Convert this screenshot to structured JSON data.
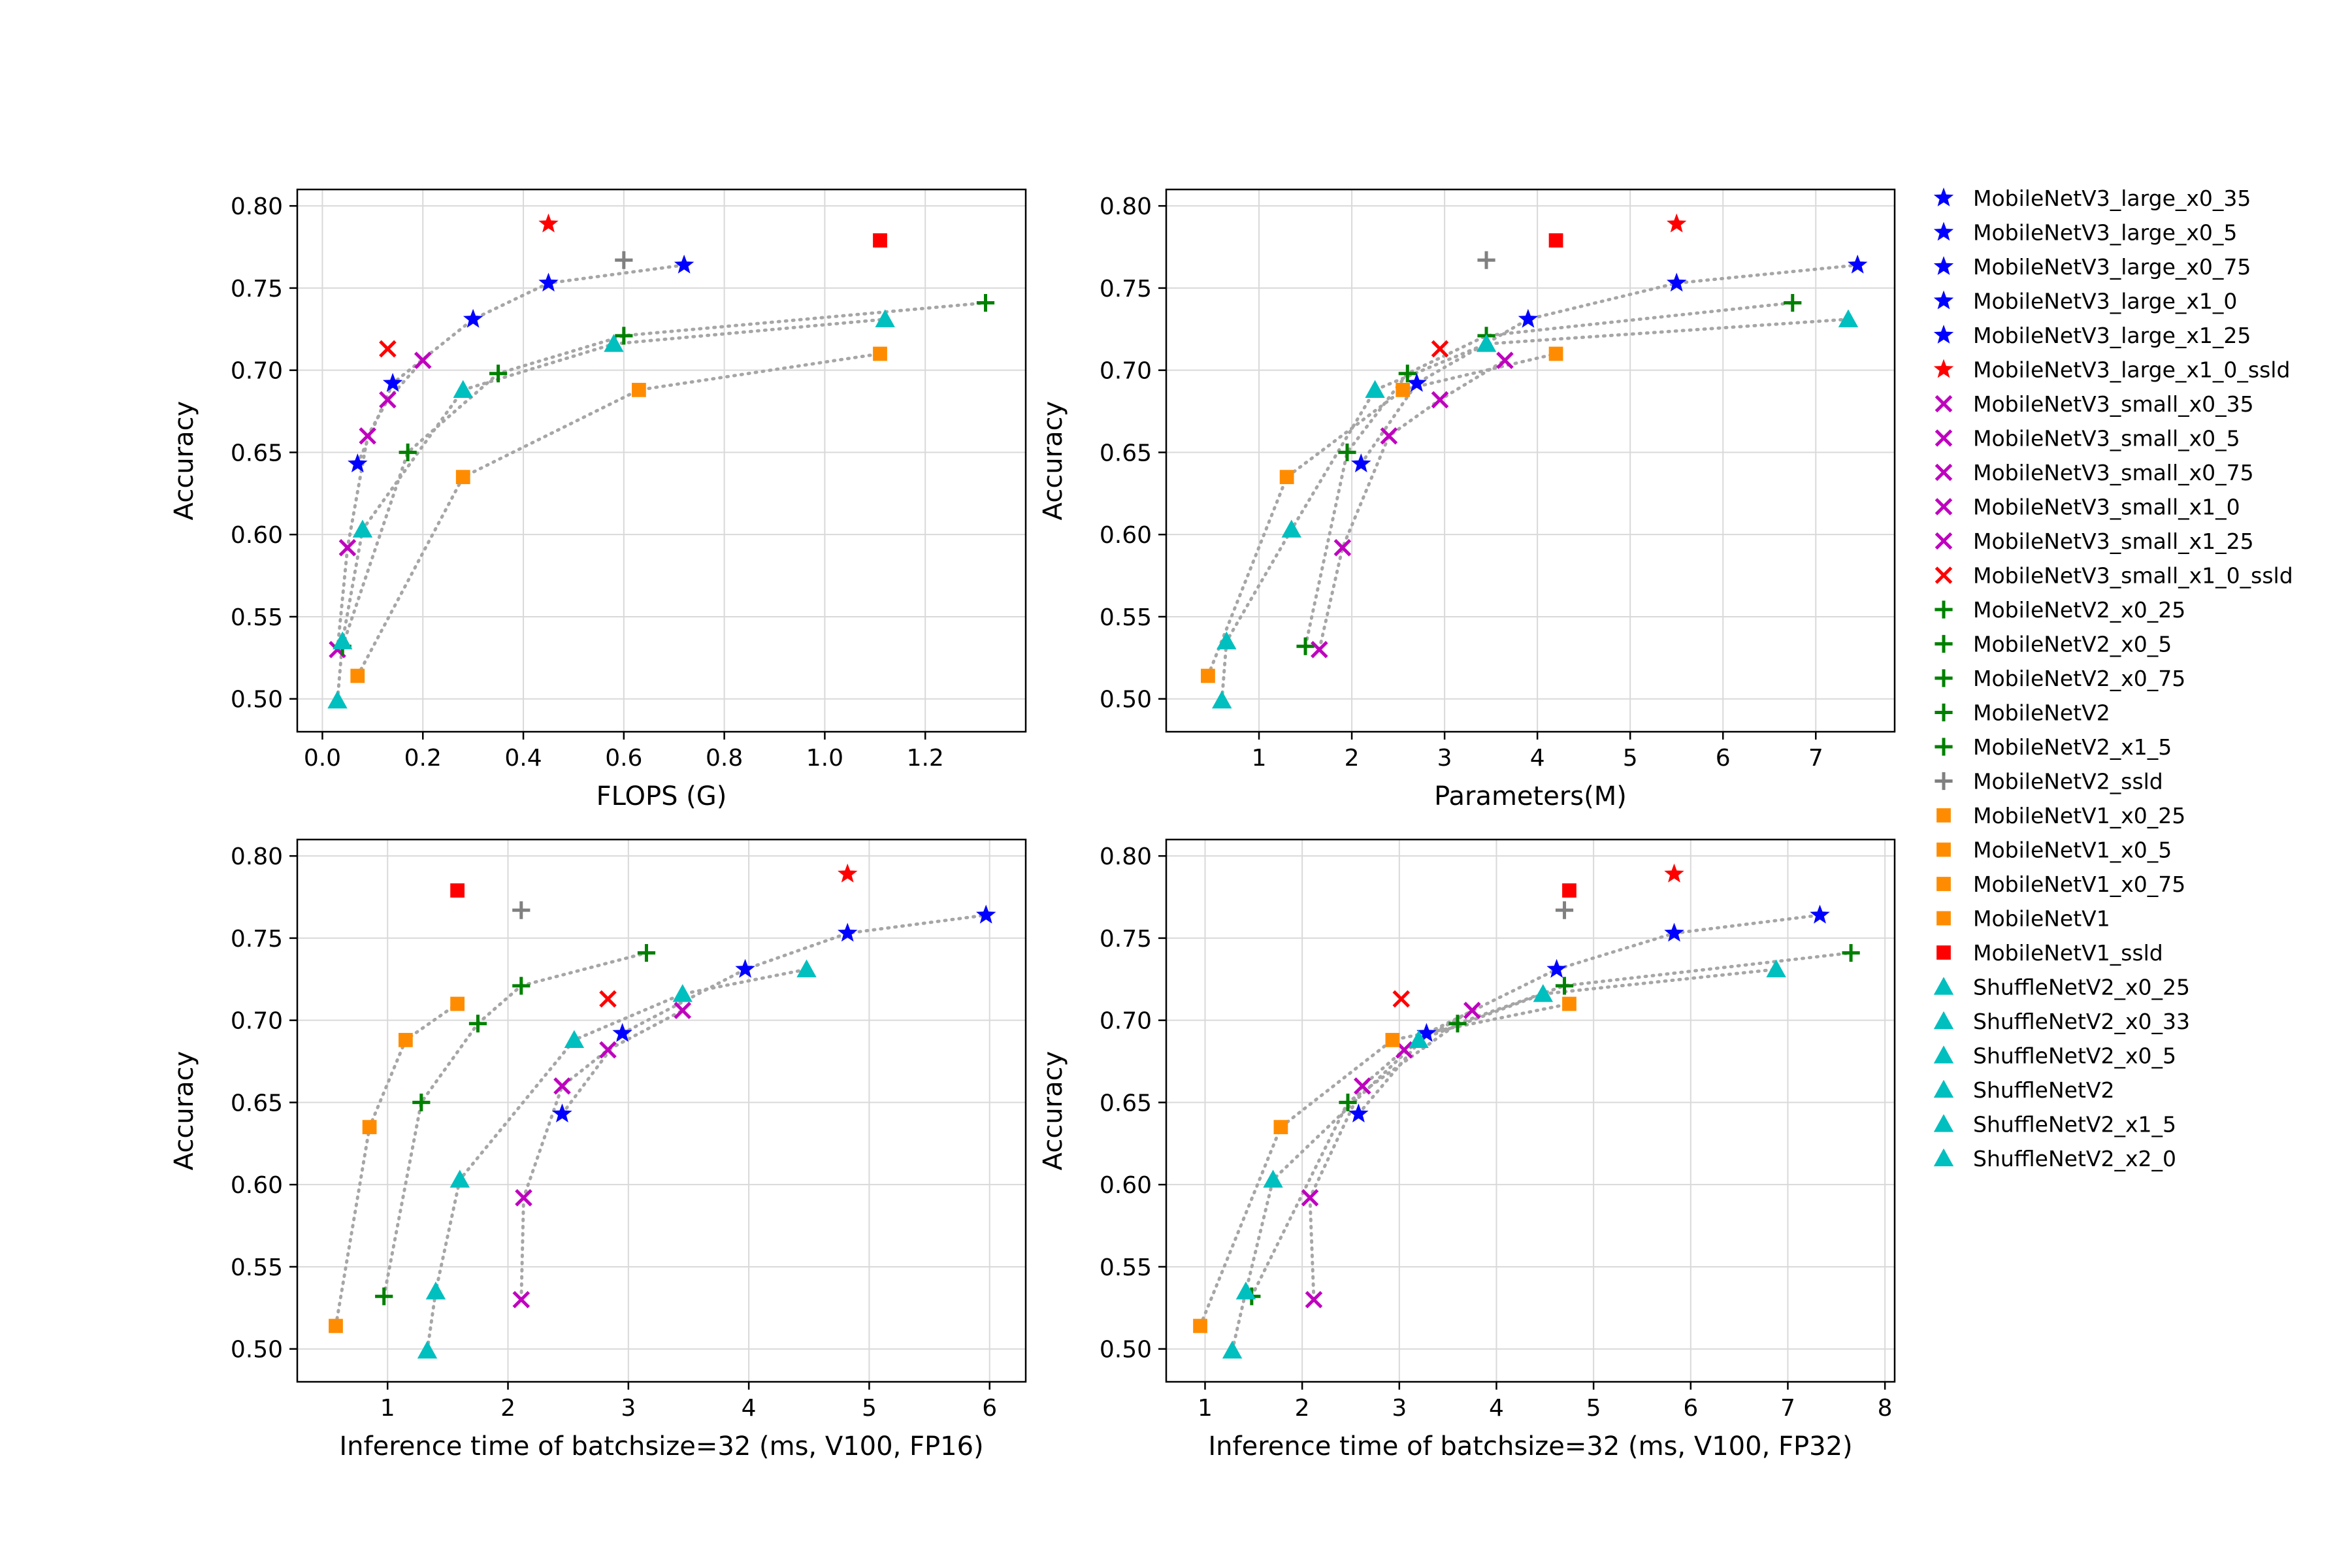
{
  "chart_data": [
    {
      "type": "scatter",
      "xlabel": "FLOPS (G)",
      "ylabel": "Accuracy",
      "xlim": [
        -0.05,
        1.4
      ],
      "ylim": [
        0.48,
        0.81
      ],
      "xticks": [
        0.0,
        0.2,
        0.4,
        0.6,
        0.8,
        1.0,
        1.2
      ],
      "xtick_labels": [
        "0.0",
        "0.2",
        "0.4",
        "0.6",
        "0.8",
        "1.0",
        "1.2"
      ],
      "yticks": [
        0.5,
        0.55,
        0.6,
        0.65,
        0.7,
        0.75,
        0.8
      ],
      "ytick_labels": [
        "0.50",
        "0.55",
        "0.60",
        "0.65",
        "0.70",
        "0.75",
        "0.80"
      ],
      "grid": true,
      "series": [
        {
          "family": "MobileNetV3_large",
          "x": [
            0.07,
            0.14,
            0.3,
            0.45,
            0.72
          ],
          "y": [
            0.643,
            0.692,
            0.731,
            0.753,
            0.764
          ]
        },
        {
          "family": "MobileNetV3_small",
          "x": [
            0.03,
            0.05,
            0.09,
            0.13,
            0.2
          ],
          "y": [
            0.53,
            0.592,
            0.66,
            0.682,
            0.706
          ]
        },
        {
          "family": "MobileNetV2",
          "x": [
            0.04,
            0.17,
            0.35,
            0.6,
            1.32
          ],
          "y": [
            0.532,
            0.65,
            0.698,
            0.721,
            0.741
          ]
        },
        {
          "family": "MobileNetV1",
          "x": [
            0.07,
            0.28,
            0.63,
            1.11
          ],
          "y": [
            0.514,
            0.635,
            0.688,
            0.71
          ]
        },
        {
          "family": "ShuffleNetV2",
          "x": [
            0.03,
            0.04,
            0.08,
            0.28,
            0.58,
            1.12
          ],
          "y": [
            0.499,
            0.535,
            0.603,
            0.688,
            0.716,
            0.731
          ]
        },
        {
          "family": "MobileNetV3_large_x1_0_ssld",
          "x": [
            0.45
          ],
          "y": [
            0.789
          ]
        },
        {
          "family": "MobileNetV3_small_x1_0_ssld",
          "x": [
            0.13
          ],
          "y": [
            0.713
          ]
        },
        {
          "family": "MobileNetV2_ssld",
          "x": [
            0.6
          ],
          "y": [
            0.767
          ]
        },
        {
          "family": "MobileNetV1_ssld",
          "x": [
            1.11
          ],
          "y": [
            0.779
          ]
        }
      ]
    },
    {
      "type": "scatter",
      "xlabel": "Parameters(M)",
      "ylabel": "Accuracy",
      "xlim": [
        0.0,
        7.85
      ],
      "ylim": [
        0.48,
        0.81
      ],
      "xticks": [
        1,
        2,
        3,
        4,
        5,
        6,
        7
      ],
      "xtick_labels": [
        "1",
        "2",
        "3",
        "4",
        "5",
        "6",
        "7"
      ],
      "yticks": [
        0.5,
        0.55,
        0.6,
        0.65,
        0.7,
        0.75,
        0.8
      ],
      "ytick_labels": [
        "0.50",
        "0.55",
        "0.60",
        "0.65",
        "0.70",
        "0.75",
        "0.80"
      ],
      "grid": true,
      "series": [
        {
          "family": "MobileNetV3_large",
          "x": [
            2.1,
            2.7,
            3.9,
            5.5,
            7.45
          ],
          "y": [
            0.643,
            0.692,
            0.731,
            0.753,
            0.764
          ]
        },
        {
          "family": "MobileNetV3_small",
          "x": [
            1.65,
            1.9,
            2.4,
            2.95,
            3.65
          ],
          "y": [
            0.53,
            0.592,
            0.66,
            0.682,
            0.706
          ]
        },
        {
          "family": "MobileNetV2",
          "x": [
            1.5,
            1.95,
            2.6,
            3.45,
            6.75
          ],
          "y": [
            0.532,
            0.65,
            0.698,
            0.721,
            0.741
          ]
        },
        {
          "family": "MobileNetV1",
          "x": [
            0.45,
            1.3,
            2.55,
            4.2
          ],
          "y": [
            0.514,
            0.635,
            0.688,
            0.71
          ]
        },
        {
          "family": "ShuffleNetV2",
          "x": [
            0.6,
            0.65,
            1.35,
            2.25,
            3.45,
            7.35
          ],
          "y": [
            0.499,
            0.535,
            0.603,
            0.688,
            0.716,
            0.731
          ]
        },
        {
          "family": "MobileNetV3_large_x1_0_ssld",
          "x": [
            5.5
          ],
          "y": [
            0.789
          ]
        },
        {
          "family": "MobileNetV3_small_x1_0_ssld",
          "x": [
            2.95
          ],
          "y": [
            0.713
          ]
        },
        {
          "family": "MobileNetV2_ssld",
          "x": [
            3.45
          ],
          "y": [
            0.767
          ]
        },
        {
          "family": "MobileNetV1_ssld",
          "x": [
            4.2
          ],
          "y": [
            0.779
          ]
        }
      ]
    },
    {
      "type": "scatter",
      "xlabel": "Inference time of batchsize=32 (ms, V100, FP16)",
      "ylabel": "Accuracy",
      "xlim": [
        0.25,
        6.3
      ],
      "ylim": [
        0.48,
        0.81
      ],
      "xticks": [
        1,
        2,
        3,
        4,
        5,
        6
      ],
      "xtick_labels": [
        "1",
        "2",
        "3",
        "4",
        "5",
        "6"
      ],
      "yticks": [
        0.5,
        0.55,
        0.6,
        0.65,
        0.7,
        0.75,
        0.8
      ],
      "ytick_labels": [
        "0.50",
        "0.55",
        "0.60",
        "0.65",
        "0.70",
        "0.75",
        "0.80"
      ],
      "grid": true,
      "series": [
        {
          "family": "MobileNetV3_large",
          "x": [
            2.45,
            2.95,
            3.97,
            4.82,
            5.97
          ],
          "y": [
            0.643,
            0.692,
            0.731,
            0.753,
            0.764
          ]
        },
        {
          "family": "MobileNetV3_small",
          "x": [
            2.11,
            2.13,
            2.45,
            2.83,
            3.45
          ],
          "y": [
            0.53,
            0.592,
            0.66,
            0.682,
            0.706
          ]
        },
        {
          "family": "MobileNetV2",
          "x": [
            0.97,
            1.28,
            1.75,
            2.11,
            3.15
          ],
          "y": [
            0.532,
            0.65,
            0.698,
            0.721,
            0.741
          ]
        },
        {
          "family": "MobileNetV1",
          "x": [
            0.57,
            0.85,
            1.15,
            1.58
          ],
          "y": [
            0.514,
            0.635,
            0.688,
            0.71
          ]
        },
        {
          "family": "ShuffleNetV2",
          "x": [
            1.33,
            1.4,
            1.6,
            2.55,
            3.45,
            4.48
          ],
          "y": [
            0.499,
            0.535,
            0.603,
            0.688,
            0.716,
            0.731
          ]
        },
        {
          "family": "MobileNetV3_large_x1_0_ssld",
          "x": [
            4.82
          ],
          "y": [
            0.789
          ]
        },
        {
          "family": "MobileNetV3_small_x1_0_ssld",
          "x": [
            2.83
          ],
          "y": [
            0.713
          ]
        },
        {
          "family": "MobileNetV2_ssld",
          "x": [
            2.11
          ],
          "y": [
            0.767
          ]
        },
        {
          "family": "MobileNetV1_ssld",
          "x": [
            1.58
          ],
          "y": [
            0.779
          ]
        }
      ]
    },
    {
      "type": "scatter",
      "xlabel": "Inference time of batchsize=32 (ms, V100, FP32)",
      "ylabel": "Accuracy",
      "xlim": [
        0.6,
        8.1
      ],
      "ylim": [
        0.48,
        0.81
      ],
      "xticks": [
        1,
        2,
        3,
        4,
        5,
        6,
        7,
        8
      ],
      "xtick_labels": [
        "1",
        "2",
        "3",
        "4",
        "5",
        "6",
        "7",
        "8"
      ],
      "yticks": [
        0.5,
        0.55,
        0.6,
        0.65,
        0.7,
        0.75,
        0.8
      ],
      "ytick_labels": [
        "0.50",
        "0.55",
        "0.60",
        "0.65",
        "0.70",
        "0.75",
        "0.80"
      ],
      "grid": true,
      "series": [
        {
          "family": "MobileNetV3_large",
          "x": [
            2.58,
            3.28,
            4.62,
            5.83,
            7.33
          ],
          "y": [
            0.643,
            0.692,
            0.731,
            0.753,
            0.764
          ]
        },
        {
          "family": "MobileNetV3_small",
          "x": [
            2.12,
            2.08,
            2.62,
            3.05,
            3.75
          ],
          "y": [
            0.53,
            0.592,
            0.66,
            0.682,
            0.706
          ]
        },
        {
          "family": "MobileNetV2",
          "x": [
            1.48,
            2.47,
            3.6,
            4.7,
            7.65
          ],
          "y": [
            0.532,
            0.65,
            0.698,
            0.721,
            0.741
          ]
        },
        {
          "family": "MobileNetV1",
          "x": [
            0.95,
            1.78,
            2.93,
            4.75
          ],
          "y": [
            0.514,
            0.635,
            0.688,
            0.71
          ]
        },
        {
          "family": "ShuffleNetV2",
          "x": [
            1.28,
            1.42,
            1.7,
            3.2,
            4.48,
            6.88
          ],
          "y": [
            0.499,
            0.535,
            0.603,
            0.688,
            0.716,
            0.731
          ]
        },
        {
          "family": "MobileNetV3_large_x1_0_ssld",
          "x": [
            5.83
          ],
          "y": [
            0.789
          ]
        },
        {
          "family": "MobileNetV3_small_x1_0_ssld",
          "x": [
            3.02
          ],
          "y": [
            0.713
          ]
        },
        {
          "family": "MobileNetV2_ssld",
          "x": [
            4.7
          ],
          "y": [
            0.767
          ]
        },
        {
          "family": "MobileNetV1_ssld",
          "x": [
            4.75
          ],
          "y": [
            0.779
          ]
        }
      ]
    }
  ],
  "styles": {
    "MobileNetV3_large": {
      "marker": "star",
      "color": "#0000ff",
      "dotted": true
    },
    "MobileNetV3_small": {
      "marker": "x",
      "color": "#bf00bf",
      "dotted": true
    },
    "MobileNetV2": {
      "marker": "plus",
      "color": "#008000",
      "dotted": true
    },
    "MobileNetV1": {
      "marker": "square",
      "color": "#ff8c00",
      "dotted": true
    },
    "ShuffleNetV2": {
      "marker": "triangle",
      "color": "#00bfbf",
      "dotted": true
    },
    "MobileNetV3_large_x1_0_ssld": {
      "marker": "star",
      "color": "#ff0000",
      "dotted": false
    },
    "MobileNetV3_small_x1_0_ssld": {
      "marker": "x",
      "color": "#ff0000",
      "dotted": false
    },
    "MobileNetV2_ssld": {
      "marker": "plus",
      "color": "#808080",
      "dotted": false
    },
    "MobileNetV1_ssld": {
      "marker": "square",
      "color": "#ff0000",
      "dotted": false
    },
    "connector_color": "#a6a6a6",
    "grid_color": "#d9d9d9"
  },
  "legend": {
    "placement": "right",
    "entries": [
      {
        "label": "MobileNetV3_large_x0_35",
        "marker": "star",
        "color": "#0000ff"
      },
      {
        "label": "MobileNetV3_large_x0_5",
        "marker": "star",
        "color": "#0000ff"
      },
      {
        "label": "MobileNetV3_large_x0_75",
        "marker": "star",
        "color": "#0000ff"
      },
      {
        "label": "MobileNetV3_large_x1_0",
        "marker": "star",
        "color": "#0000ff"
      },
      {
        "label": "MobileNetV3_large_x1_25",
        "marker": "star",
        "color": "#0000ff"
      },
      {
        "label": "MobileNetV3_large_x1_0_ssld",
        "marker": "star",
        "color": "#ff0000"
      },
      {
        "label": "MobileNetV3_small_x0_35",
        "marker": "x",
        "color": "#bf00bf"
      },
      {
        "label": "MobileNetV3_small_x0_5",
        "marker": "x",
        "color": "#bf00bf"
      },
      {
        "label": "MobileNetV3_small_x0_75",
        "marker": "x",
        "color": "#bf00bf"
      },
      {
        "label": "MobileNetV3_small_x1_0",
        "marker": "x",
        "color": "#bf00bf"
      },
      {
        "label": "MobileNetV3_small_x1_25",
        "marker": "x",
        "color": "#bf00bf"
      },
      {
        "label": "MobileNetV3_small_x1_0_ssld",
        "marker": "x",
        "color": "#ff0000"
      },
      {
        "label": "MobileNetV2_x0_25",
        "marker": "plus",
        "color": "#008000"
      },
      {
        "label": "MobileNetV2_x0_5",
        "marker": "plus",
        "color": "#008000"
      },
      {
        "label": "MobileNetV2_x0_75",
        "marker": "plus",
        "color": "#008000"
      },
      {
        "label": "MobileNetV2",
        "marker": "plus",
        "color": "#008000"
      },
      {
        "label": "MobileNetV2_x1_5",
        "marker": "plus",
        "color": "#008000"
      },
      {
        "label": "MobileNetV2_ssld",
        "marker": "plus",
        "color": "#808080"
      },
      {
        "label": "MobileNetV1_x0_25",
        "marker": "square",
        "color": "#ff8c00"
      },
      {
        "label": "MobileNetV1_x0_5",
        "marker": "square",
        "color": "#ff8c00"
      },
      {
        "label": "MobileNetV1_x0_75",
        "marker": "square",
        "color": "#ff8c00"
      },
      {
        "label": "MobileNetV1",
        "marker": "square",
        "color": "#ff8c00"
      },
      {
        "label": "MobileNetV1_ssld",
        "marker": "square",
        "color": "#ff0000"
      },
      {
        "label": "ShuffleNetV2_x0_25",
        "marker": "triangle",
        "color": "#00bfbf"
      },
      {
        "label": "ShuffleNetV2_x0_33",
        "marker": "triangle",
        "color": "#00bfbf"
      },
      {
        "label": "ShuffleNetV2_x0_5",
        "marker": "triangle",
        "color": "#00bfbf"
      },
      {
        "label": "ShuffleNetV2",
        "marker": "triangle",
        "color": "#00bfbf"
      },
      {
        "label": "ShuffleNetV2_x1_5",
        "marker": "triangle",
        "color": "#00bfbf"
      },
      {
        "label": "ShuffleNetV2_x2_0",
        "marker": "triangle",
        "color": "#00bfbf"
      }
    ]
  }
}
